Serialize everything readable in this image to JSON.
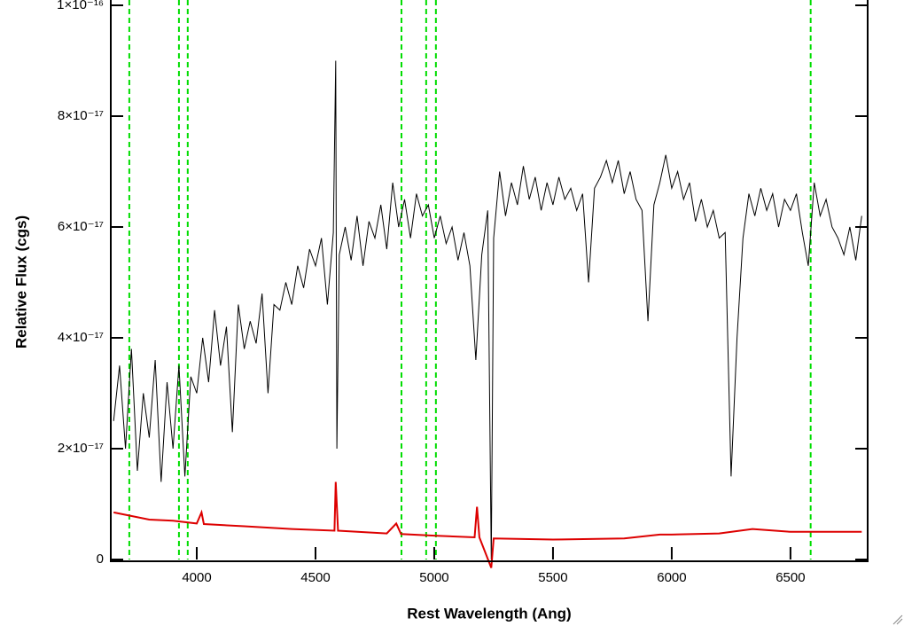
{
  "chart_data": {
    "type": "line",
    "xlabel": "Rest Wavelength (Ang)",
    "ylabel": "Relative Flux (cgs)",
    "xlim": [
      3638,
      6825
    ],
    "ylim": [
      0,
      1e-16
    ],
    "xticks": [
      4000,
      4500,
      5000,
      5500,
      6000,
      6500
    ],
    "yticks": [
      0,
      {
        "value": 2e-17,
        "label": "2×10⁻¹⁷"
      },
      {
        "value": 4e-17,
        "label": "4×10⁻¹⁷"
      },
      {
        "value": 6e-17,
        "label": "6×10⁻¹⁷"
      },
      {
        "value": 8e-17,
        "label": "8×10⁻¹⁷"
      },
      {
        "value": 1e-16,
        "label": "1×10⁻¹⁶"
      }
    ],
    "vlines": {
      "color": "#00dd00",
      "x": [
        3716,
        3925,
        3962,
        4862,
        4966,
        5007,
        6585
      ]
    },
    "series": [
      {
        "color": "#000000",
        "x": [
          3650,
          3675,
          3700,
          3725,
          3750,
          3775,
          3800,
          3825,
          3850,
          3875,
          3900,
          3925,
          3950,
          3975,
          4000,
          4025,
          4050,
          4075,
          4100,
          4125,
          4150,
          4175,
          4200,
          4225,
          4250,
          4275,
          4300,
          4325,
          4350,
          4375,
          4400,
          4425,
          4450,
          4475,
          4500,
          4525,
          4550,
          4575,
          4585,
          4590,
          4600,
          4625,
          4650,
          4675,
          4700,
          4725,
          4750,
          4775,
          4800,
          4825,
          4850,
          4875,
          4900,
          4925,
          4950,
          4975,
          5000,
          5025,
          5050,
          5075,
          5100,
          5125,
          5150,
          5175,
          5200,
          5225,
          5240,
          5250,
          5275,
          5300,
          5325,
          5350,
          5375,
          5400,
          5425,
          5450,
          5475,
          5500,
          5525,
          5550,
          5575,
          5600,
          5625,
          5650,
          5675,
          5700,
          5725,
          5750,
          5775,
          5800,
          5825,
          5850,
          5875,
          5900,
          5925,
          5950,
          5975,
          6000,
          6025,
          6050,
          6075,
          6100,
          6125,
          6150,
          6175,
          6200,
          6225,
          6250,
          6275,
          6300,
          6325,
          6350,
          6375,
          6400,
          6425,
          6450,
          6475,
          6500,
          6525,
          6550,
          6575,
          6600,
          6625,
          6650,
          6675,
          6700,
          6725,
          6750,
          6775,
          6800
        ],
        "values": [
          2.5e-17,
          3.5e-17,
          2e-17,
          3.8e-17,
          1.6e-17,
          3e-17,
          2.2e-17,
          3.6e-17,
          1.4e-17,
          3.2e-17,
          2e-17,
          3.5e-17,
          1.5e-17,
          3.3e-17,
          3e-17,
          4e-17,
          3.2e-17,
          4.5e-17,
          3.5e-17,
          4.2e-17,
          2.3e-17,
          4.6e-17,
          3.8e-17,
          4.3e-17,
          3.9e-17,
          4.8e-17,
          3e-17,
          4.6e-17,
          4.5e-17,
          5e-17,
          4.6e-17,
          5.3e-17,
          4.9e-17,
          5.6e-17,
          5.3e-17,
          5.8e-17,
          4.6e-17,
          5.9e-17,
          9e-17,
          2e-17,
          5.5e-17,
          6e-17,
          5.4e-17,
          6.2e-17,
          5.3e-17,
          6.1e-17,
          5.8e-17,
          6.4e-17,
          5.6e-17,
          6.8e-17,
          6e-17,
          6.5e-17,
          5.8e-17,
          6.6e-17,
          6.2e-17,
          6.4e-17,
          5.8e-17,
          6.2e-17,
          5.7e-17,
          6e-17,
          5.4e-17,
          5.9e-17,
          5.3e-17,
          3.6e-17,
          5.5e-17,
          6.3e-17,
          0,
          5.8e-17,
          7e-17,
          6.2e-17,
          6.8e-17,
          6.4e-17,
          7.1e-17,
          6.5e-17,
          6.9e-17,
          6.3e-17,
          6.8e-17,
          6.4e-17,
          6.9e-17,
          6.5e-17,
          6.7e-17,
          6.3e-17,
          6.6e-17,
          5e-17,
          6.7e-17,
          6.9e-17,
          7.2e-17,
          6.8e-17,
          7.2e-17,
          6.6e-17,
          7e-17,
          6.5e-17,
          6.3e-17,
          4.3e-17,
          6.4e-17,
          6.8e-17,
          7.3e-17,
          6.7e-17,
          7e-17,
          6.5e-17,
          6.8e-17,
          6.1e-17,
          6.5e-17,
          6e-17,
          6.3e-17,
          5.8e-17,
          5.9e-17,
          1.5e-17,
          4e-17,
          5.8e-17,
          6.6e-17,
          6.2e-17,
          6.7e-17,
          6.3e-17,
          6.6e-17,
          6e-17,
          6.5e-17,
          6.3e-17,
          6.6e-17,
          5.9e-17,
          5.3e-17,
          6.8e-17,
          6.2e-17,
          6.5e-17,
          6e-17,
          5.8e-17,
          5.5e-17,
          6e-17,
          5.4e-17,
          6.2e-17
        ]
      },
      {
        "color": "#dd0000",
        "x": [
          3650,
          3800,
          3900,
          4000,
          4020,
          4030,
          4200,
          4400,
          4580,
          4585,
          4595,
          4800,
          4840,
          4860,
          5000,
          5170,
          5180,
          5190,
          5240,
          5250,
          5500,
          5800,
          5950,
          6000,
          6200,
          6340,
          6500,
          6800
        ],
        "values": [
          8.5e-18,
          7.2e-18,
          7e-18,
          6.5e-18,
          8.5e-18,
          6.4e-18,
          6e-18,
          5.5e-18,
          5.2e-18,
          1.4e-17,
          5.2e-18,
          4.7e-18,
          6.5e-18,
          4.6e-18,
          4.3e-18,
          4e-18,
          9.5e-18,
          4e-18,
          -1.5e-18,
          3.8e-18,
          3.6e-18,
          3.8e-18,
          4.5e-18,
          4.5e-18,
          4.7e-18,
          5.5e-18,
          5e-18,
          5e-18
        ]
      }
    ]
  }
}
